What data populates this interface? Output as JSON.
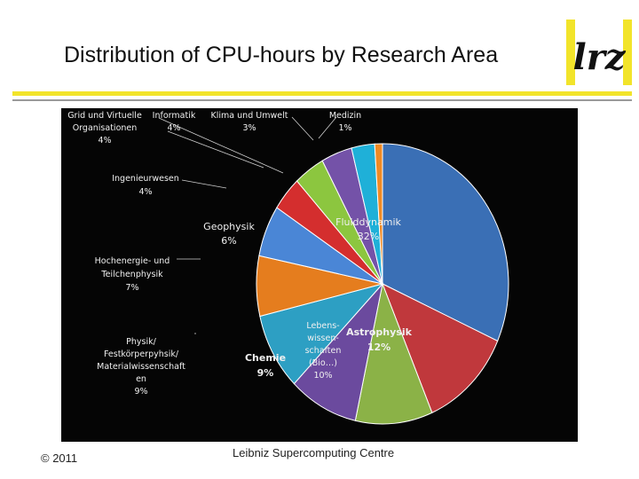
{
  "slide": {
    "title": "Distribution of CPU-hours by Research Area",
    "footer_left": "© 2011",
    "footer_center": "Leibniz Supercomputing Centre",
    "logo_text": "lrz"
  },
  "colors": {
    "accent_yellow": "#f2e42a",
    "rule_grey": "#9a9a9a",
    "label_light": "#f0f0f0",
    "leader": "#cfcfcf"
  },
  "chart_data": {
    "type": "pie",
    "title": "",
    "legend": "none",
    "slices": [
      {
        "label": "Fluiddynamik",
        "value": 32,
        "value_label": "32%",
        "color": "#3a6fb5"
      },
      {
        "label": "Astrophysik",
        "value": 12,
        "value_label": "12%",
        "color": "#c0383c"
      },
      {
        "label": "Lebens- wissen- schaften (Bio…)",
        "value": 10,
        "value_label": "10%",
        "color": "#8bb247"
      },
      {
        "label": "Chemie",
        "value": 9,
        "value_label": "9%",
        "color": "#6b4a9e"
      },
      {
        "label": "Physik/ Festkörperpyhsik/ Materialwissenschaften",
        "value": 9,
        "value_label": "9%",
        "color": "#2d9fc3"
      },
      {
        "label": "Hochenergie- und Teilchenphysik",
        "value": 7,
        "value_label": "7%",
        "color": "#e57d1e"
      },
      {
        "label": "Geophysik",
        "value": 6,
        "value_label": "6%",
        "color": "#4a86d6"
      },
      {
        "label": "Ingenieurwesen",
        "value": 4,
        "value_label": "4%",
        "color": "#d42e2e"
      },
      {
        "label": "Grid und Virtuelle Organisationen",
        "value": 4,
        "value_label": "4%",
        "color": "#8cc63f"
      },
      {
        "label": "Informatik",
        "value": 4,
        "value_label": "4%",
        "color": "#7452a8"
      },
      {
        "label": "Klima und Umwelt",
        "value": 3,
        "value_label": "3%",
        "color": "#1fb0d8"
      },
      {
        "label": "Medizin",
        "value": 1,
        "value_label": "1%",
        "color": "#f08a24"
      }
    ]
  },
  "label_lines": [
    [
      "Fluiddynamik",
      "32%"
    ],
    [
      "Astrophysik",
      "12%"
    ],
    [
      "Lebens-",
      "wissen-",
      "schaften",
      "(Bio…)",
      "10%"
    ],
    [
      "Chemie",
      "9%"
    ],
    [
      "Physik/",
      "Festkörperpyhsik/",
      "Materialwissenschaft",
      "en",
      "9%"
    ],
    [
      "Hochenergie-  und",
      "Teilchenphysik",
      "7%"
    ],
    [
      "Geophysik",
      "6%"
    ],
    [
      "Ingenieurwesen",
      "4%"
    ],
    [
      "Grid und Virtuelle",
      "Organisationen",
      "4%"
    ],
    [
      "Informatik",
      "4%"
    ],
    [
      "Klima und Umwelt",
      "3%"
    ],
    [
      "Medizin",
      "1%"
    ]
  ]
}
